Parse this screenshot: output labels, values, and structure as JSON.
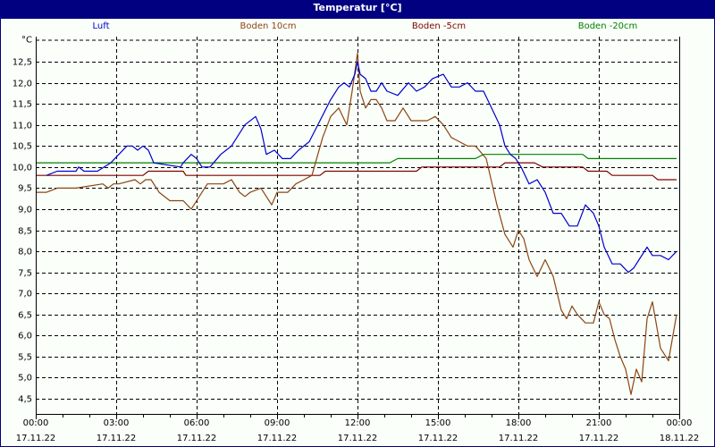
{
  "window": {
    "title": "Temperatur [°C]"
  },
  "colors": {
    "titlebar": "#000080",
    "grid": "#000000",
    "luft": "#0000cc",
    "boden10": "#8b4513",
    "boden5": "#800000",
    "boden20": "#008000"
  },
  "legend": [
    {
      "label": "Luft",
      "color": "#0000cc"
    },
    {
      "label": "Boden 10cm",
      "color": "#8b4513"
    },
    {
      "label": "Boden -5cm",
      "color": "#800000"
    },
    {
      "label": "Boden -20cm",
      "color": "#008000"
    }
  ],
  "axis": {
    "y_unit": "°C",
    "y_ticks": [
      "12,5",
      "12,0",
      "11,5",
      "11,0",
      "10,5",
      "10,0",
      "9,5",
      "9,0",
      "8,5",
      "8,0",
      "7,5",
      "7,0",
      "6,5",
      "6,0",
      "5,5",
      "5,0",
      "4,5"
    ],
    "x_ticks": [
      {
        "time": "00:00",
        "date": "17.11.22"
      },
      {
        "time": "03:00",
        "date": "17.11.22"
      },
      {
        "time": "06:00",
        "date": "17.11.22"
      },
      {
        "time": "09:00",
        "date": "17.11.22"
      },
      {
        "time": "12:00",
        "date": "17.11.22"
      },
      {
        "time": "15:00",
        "date": "17.11.22"
      },
      {
        "time": "18:00",
        "date": "17.11.22"
      },
      {
        "time": "21:00",
        "date": "17.11.22"
      },
      {
        "time": "00:00",
        "date": "18.11.22"
      }
    ]
  },
  "chart_data": {
    "type": "line",
    "title": "Temperatur [°C]",
    "xlabel": "",
    "ylabel": "°C",
    "ylim": [
      4.2,
      12.9
    ],
    "xlim_hours": [
      0,
      24
    ],
    "grid": true,
    "legend_position": "top",
    "x_unit": "hours since 17.11.22 00:00",
    "series": [
      {
        "name": "Luft",
        "color": "#0000cc",
        "x": [
          0.4,
          0.8,
          1.5,
          1.6,
          1.8,
          2.3,
          2.8,
          3.1,
          3.4,
          3.6,
          3.8,
          4.0,
          4.2,
          4.4,
          5.4,
          5.5,
          5.8,
          6.0,
          6.2,
          6.5,
          6.9,
          7.3,
          7.8,
          8.2,
          8.4,
          8.6,
          8.9,
          9.2,
          9.5,
          9.8,
          10.2,
          10.6,
          11.0,
          11.3,
          11.5,
          11.7,
          11.9,
          12.0,
          12.1,
          12.3,
          12.5,
          12.7,
          12.9,
          13.1,
          13.5,
          13.9,
          14.2,
          14.5,
          14.8,
          15.2,
          15.5,
          15.8,
          16.1,
          16.4,
          16.7,
          17.0,
          17.3,
          17.5,
          17.7,
          17.9,
          18.1,
          18.4,
          18.7,
          19.0,
          19.3,
          19.6,
          19.9,
          20.2,
          20.5,
          20.8,
          21.0,
          21.2,
          21.5,
          21.8,
          22.1,
          22.3,
          22.5,
          22.8,
          23.0,
          23.3,
          23.6,
          23.9
        ],
        "values": [
          9.8,
          9.9,
          9.9,
          10.0,
          9.9,
          9.9,
          10.1,
          10.3,
          10.5,
          10.5,
          10.4,
          10.5,
          10.4,
          10.1,
          10.0,
          10.1,
          10.3,
          10.2,
          10.0,
          10.0,
          10.3,
          10.5,
          11.0,
          11.2,
          10.9,
          10.3,
          10.4,
          10.2,
          10.2,
          10.4,
          10.6,
          11.1,
          11.6,
          11.9,
          12.0,
          11.9,
          12.2,
          12.5,
          12.2,
          12.1,
          11.8,
          11.8,
          12.0,
          11.8,
          11.7,
          12.0,
          11.8,
          11.9,
          12.1,
          12.2,
          11.9,
          11.9,
          12.0,
          11.8,
          11.8,
          11.4,
          11.0,
          10.5,
          10.3,
          10.2,
          10.0,
          9.6,
          9.7,
          9.4,
          8.9,
          8.9,
          8.6,
          8.6,
          9.1,
          8.9,
          8.6,
          8.1,
          7.7,
          7.7,
          7.5,
          7.6,
          7.8,
          8.1,
          7.9,
          7.9,
          7.8,
          8.0
        ]
      },
      {
        "name": "Boden 10cm",
        "color": "#8b4513",
        "x": [
          0.0,
          0.4,
          0.8,
          1.5,
          2.5,
          2.7,
          2.9,
          3.1,
          3.7,
          3.9,
          4.1,
          4.3,
          4.6,
          5.0,
          5.5,
          5.8,
          6.2,
          6.4,
          6.8,
          7.0,
          7.3,
          7.6,
          7.8,
          8.0,
          8.4,
          8.6,
          8.8,
          9.0,
          9.4,
          9.7,
          10.0,
          10.3,
          10.7,
          11.0,
          11.3,
          11.6,
          11.8,
          12.0,
          12.1,
          12.3,
          12.5,
          12.7,
          12.9,
          13.1,
          13.4,
          13.7,
          14.0,
          14.3,
          14.6,
          14.9,
          15.2,
          15.5,
          15.8,
          16.1,
          16.4,
          16.8,
          17.2,
          17.5,
          17.8,
          18.0,
          18.2,
          18.4,
          18.7,
          19.0,
          19.3,
          19.6,
          19.8,
          20.0,
          20.2,
          20.5,
          20.8,
          21.0,
          21.2,
          21.4,
          21.6,
          21.8,
          22.0,
          22.2,
          22.4,
          22.6,
          22.8,
          23.0,
          23.3,
          23.6,
          23.9
        ],
        "values": [
          9.4,
          9.4,
          9.5,
          9.5,
          9.6,
          9.5,
          9.6,
          9.6,
          9.7,
          9.6,
          9.7,
          9.7,
          9.4,
          9.2,
          9.2,
          9.0,
          9.4,
          9.6,
          9.6,
          9.6,
          9.7,
          9.4,
          9.3,
          9.4,
          9.5,
          9.3,
          9.1,
          9.4,
          9.4,
          9.6,
          9.7,
          9.8,
          10.7,
          11.2,
          11.4,
          11.0,
          11.8,
          12.7,
          11.8,
          11.4,
          11.6,
          11.6,
          11.4,
          11.1,
          11.1,
          11.4,
          11.1,
          11.1,
          11.1,
          11.2,
          11.0,
          10.7,
          10.6,
          10.5,
          10.5,
          10.2,
          9.1,
          8.4,
          8.1,
          8.5,
          8.3,
          7.8,
          7.4,
          7.8,
          7.4,
          6.6,
          6.4,
          6.7,
          6.5,
          6.3,
          6.3,
          6.8,
          6.5,
          6.4,
          5.9,
          5.5,
          5.2,
          4.6,
          5.2,
          4.9,
          6.4,
          6.8,
          5.7,
          5.4,
          6.5
        ]
      },
      {
        "name": "Boden -5cm",
        "color": "#800000",
        "x": [
          0.0,
          4.0,
          4.2,
          5.5,
          5.6,
          10.6,
          10.8,
          14.2,
          14.4,
          17.3,
          17.5,
          18.6,
          18.9,
          20.4,
          20.6,
          21.3,
          21.5,
          23.0,
          23.2,
          23.9
        ],
        "values": [
          9.8,
          9.8,
          9.9,
          9.9,
          9.8,
          9.8,
          9.9,
          9.9,
          10.0,
          10.0,
          10.1,
          10.1,
          10.0,
          10.0,
          9.9,
          9.9,
          9.8,
          9.8,
          9.7,
          9.7
        ],
        "note": "stepwise series; steps approximated"
      },
      {
        "name": "Boden -20cm",
        "color": "#008000",
        "x": [
          0.0,
          13.2,
          13.5,
          16.4,
          16.7,
          20.4,
          20.6,
          23.9
        ],
        "values": [
          10.1,
          10.1,
          10.2,
          10.2,
          10.3,
          10.3,
          10.2,
          10.2
        ]
      }
    ]
  }
}
